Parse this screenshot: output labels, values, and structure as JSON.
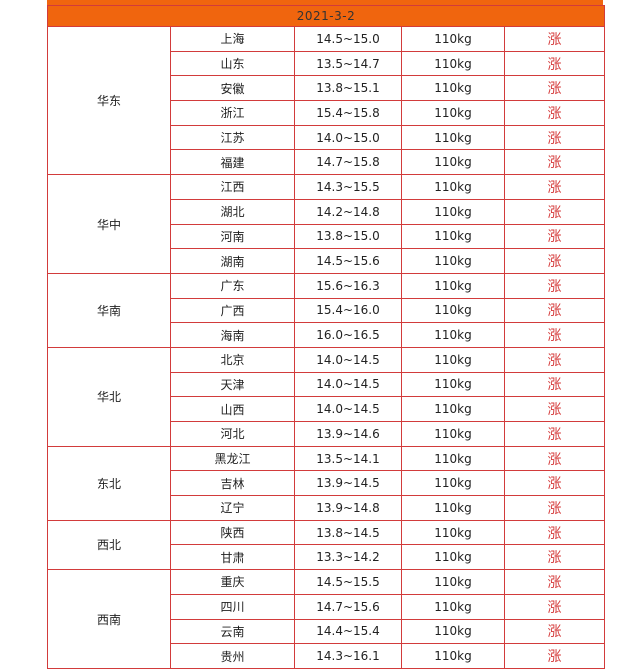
{
  "date": "2021-3-2",
  "trend_color": "#d53a3a",
  "header_color": "#f0650e",
  "groups": [
    {
      "region": "华东",
      "rows": [
        {
          "province": "上海",
          "price": "14.5~15.0",
          "weight": "110kg",
          "trend": "涨"
        },
        {
          "province": "山东",
          "price": "13.5~14.7",
          "weight": "110kg",
          "trend": "涨"
        },
        {
          "province": "安徽",
          "price": "13.8~15.1",
          "weight": "110kg",
          "trend": "涨"
        },
        {
          "province": "浙江",
          "price": "15.4~15.8",
          "weight": "110kg",
          "trend": "涨"
        },
        {
          "province": "江苏",
          "price": "14.0~15.0",
          "weight": "110kg",
          "trend": "涨"
        },
        {
          "province": "福建",
          "price": "14.7~15.8",
          "weight": "110kg",
          "trend": "涨"
        }
      ]
    },
    {
      "region": "华中",
      "rows": [
        {
          "province": "江西",
          "price": "14.3~15.5",
          "weight": "110kg",
          "trend": "涨"
        },
        {
          "province": "湖北",
          "price": "14.2~14.8",
          "weight": "110kg",
          "trend": "涨"
        },
        {
          "province": "河南",
          "price": "13.8~15.0",
          "weight": "110kg",
          "trend": "涨"
        },
        {
          "province": "湖南",
          "price": "14.5~15.6",
          "weight": "110kg",
          "trend": "涨"
        }
      ]
    },
    {
      "region": "华南",
      "rows": [
        {
          "province": "广东",
          "price": "15.6~16.3",
          "weight": "110kg",
          "trend": "涨"
        },
        {
          "province": "广西",
          "price": "15.4~16.0",
          "weight": "110kg",
          "trend": "涨"
        },
        {
          "province": "海南",
          "price": "16.0~16.5",
          "weight": "110kg",
          "trend": "涨"
        }
      ]
    },
    {
      "region": "华北",
      "rows": [
        {
          "province": "北京",
          "price": "14.0~14.5",
          "weight": "110kg",
          "trend": "涨"
        },
        {
          "province": "天津",
          "price": "14.0~14.5",
          "weight": "110kg",
          "trend": "涨"
        },
        {
          "province": "山西",
          "price": "14.0~14.5",
          "weight": "110kg",
          "trend": "涨"
        },
        {
          "province": "河北",
          "price": "13.9~14.6",
          "weight": "110kg",
          "trend": "涨"
        }
      ]
    },
    {
      "region": "东北",
      "rows": [
        {
          "province": "黑龙江",
          "price": "13.5~14.1",
          "weight": "110kg",
          "trend": "涨"
        },
        {
          "province": "吉林",
          "price": "13.9~14.5",
          "weight": "110kg",
          "trend": "涨"
        },
        {
          "province": "辽宁",
          "price": "13.9~14.8",
          "weight": "110kg",
          "trend": "涨"
        }
      ]
    },
    {
      "region": "西北",
      "rows": [
        {
          "province": "陕西",
          "price": "13.8~14.5",
          "weight": "110kg",
          "trend": "涨"
        },
        {
          "province": "甘肃",
          "price": "13.3~14.2",
          "weight": "110kg",
          "trend": "涨"
        }
      ]
    },
    {
      "region": "西南",
      "rows": [
        {
          "province": "重庆",
          "price": "14.5~15.5",
          "weight": "110kg",
          "trend": "涨"
        },
        {
          "province": "四川",
          "price": "14.7~15.6",
          "weight": "110kg",
          "trend": "涨"
        },
        {
          "province": "云南",
          "price": "14.4~15.4",
          "weight": "110kg",
          "trend": "涨"
        },
        {
          "province": "贵州",
          "price": "14.3~16.1",
          "weight": "110kg",
          "trend": "涨"
        }
      ]
    }
  ]
}
